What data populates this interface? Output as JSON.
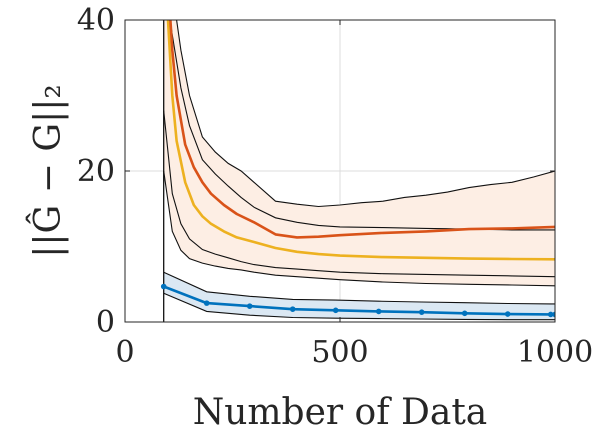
{
  "chart_data": {
    "type": "line",
    "xlabel": "Number of Data",
    "ylabel": "||Ĝ − G||₂",
    "xlim": [
      0,
      1000
    ],
    "ylim": [
      0,
      40
    ],
    "xticks": [
      0,
      500,
      1000
    ],
    "yticks": [
      0,
      20,
      40
    ],
    "xtick_labels": [
      "0",
      "500",
      "1000"
    ],
    "ytick_labels": [
      "0",
      "20",
      "40"
    ],
    "grid": true,
    "vertical_line_x": 90,
    "colors": {
      "blue_line": "#0072BD",
      "blue_band": "#dbe8f3",
      "orange_line": "#EDB120",
      "red_line": "#D95319",
      "orange_band": "#fdeee4",
      "envelope": "#111111",
      "axis": "#262626",
      "grid": "#dcdcdc"
    },
    "blue_series": {
      "x": [
        90,
        190,
        290,
        390,
        490,
        590,
        690,
        790,
        890,
        990,
        1000
      ],
      "values": [
        4.7,
        2.5,
        2.1,
        1.7,
        1.55,
        1.4,
        1.3,
        1.15,
        1.05,
        1.0,
        1.0
      ],
      "upper": [
        6.6,
        4.0,
        3.4,
        3.0,
        2.9,
        2.75,
        2.65,
        2.55,
        2.45,
        2.4,
        2.4
      ],
      "lower": [
        3.8,
        1.4,
        0.9,
        0.6,
        0.5,
        0.45,
        0.4,
        0.35,
        0.3,
        0.3,
        0.3
      ]
    },
    "orange_series": {
      "x": [
        90,
        100,
        110,
        120,
        140,
        160,
        180,
        200,
        230,
        260,
        300,
        350,
        400,
        450,
        500,
        600,
        700,
        800,
        900,
        1000
      ],
      "values": [
        45,
        40,
        30,
        24,
        18.5,
        15.5,
        14,
        13,
        12,
        11.2,
        10.6,
        9.8,
        9.3,
        9.0,
        8.8,
        8.6,
        8.5,
        8.4,
        8.35,
        8.3
      ]
    },
    "red_series": {
      "x": [
        90,
        100,
        110,
        120,
        140,
        160,
        180,
        200,
        230,
        260,
        300,
        350,
        400,
        450,
        500,
        600,
        700,
        800,
        900,
        1000
      ],
      "values": [
        50,
        45,
        36,
        30,
        23.5,
        20.5,
        18.5,
        17,
        15.5,
        14.3,
        13.2,
        11.6,
        11.2,
        11.3,
        11.5,
        11.8,
        12.0,
        12.3,
        12.4,
        12.6
      ]
    },
    "band_upper": {
      "x": [
        90,
        110,
        130,
        150,
        180,
        210,
        240,
        270,
        300,
        350,
        400,
        450,
        500,
        550,
        600,
        650,
        700,
        750,
        800,
        850,
        900,
        950,
        1000
      ],
      "values": [
        52,
        44,
        36,
        30,
        24.5,
        22.5,
        21,
        20,
        18.5,
        16,
        15.6,
        15.3,
        15.5,
        15.8,
        16,
        16.5,
        16.8,
        17.2,
        17.8,
        18.2,
        18.5,
        19.2,
        20
      ]
    },
    "band_lower": {
      "x": [
        90,
        110,
        130,
        150,
        180,
        210,
        240,
        270,
        300,
        350,
        400,
        450,
        500,
        600,
        700,
        800,
        900,
        1000
      ],
      "values": [
        20,
        12,
        9.5,
        8.4,
        7.8,
        7.4,
        7.1,
        6.9,
        6.6,
        6.2,
        6.0,
        5.8,
        5.6,
        5.3,
        5.1,
        5.0,
        4.9,
        4.8
      ]
    },
    "inner_upper": {
      "x": [
        90,
        110,
        130,
        150,
        180,
        210,
        240,
        270,
        300,
        350,
        400,
        450,
        500,
        600,
        700,
        800,
        900,
        1000
      ],
      "values": [
        46,
        38,
        31,
        26,
        21.5,
        19.6,
        18,
        16.5,
        15.2,
        13.8,
        13.2,
        12.8,
        12.6,
        12.5,
        12.4,
        12.3,
        12.2,
        12.2
      ]
    },
    "inner_lower": {
      "x": [
        90,
        110,
        130,
        150,
        180,
        210,
        240,
        270,
        300,
        350,
        400,
        450,
        500,
        600,
        700,
        800,
        900,
        1000
      ],
      "values": [
        28,
        17,
        13,
        11,
        9.6,
        9.0,
        8.5,
        8.0,
        7.6,
        7.2,
        7.0,
        6.8,
        6.6,
        6.4,
        6.3,
        6.2,
        6.1,
        6.0
      ]
    }
  }
}
